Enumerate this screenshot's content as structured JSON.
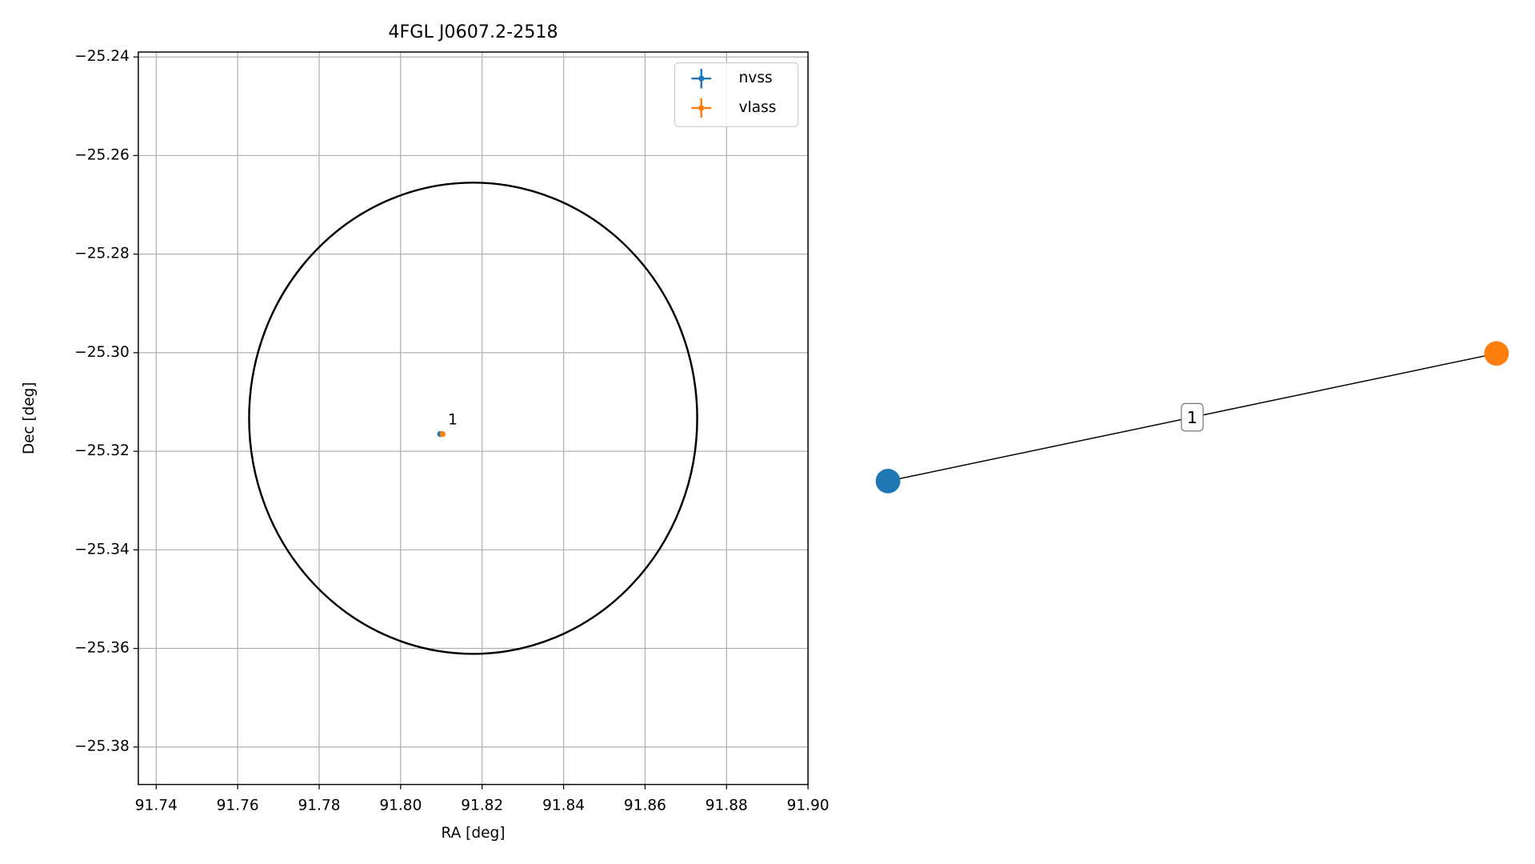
{
  "chart_data": [
    {
      "type": "scatter",
      "title": "4FGL J0607.2-2518",
      "xlabel": "RA [deg]",
      "ylabel": "Dec [deg]",
      "xlim": [
        91.7356,
        91.9
      ],
      "ylim": [
        -25.3876,
        -25.239
      ],
      "xticks": [
        91.74,
        91.76,
        91.78,
        {
          "value": 91.8,
          "label": "91.80"
        },
        91.82,
        91.84,
        91.86,
        91.88,
        {
          "value": 91.9,
          "label": "91.90"
        }
      ],
      "yticks": [
        {
          "value": -25.24,
          "label": "−25.24"
        },
        {
          "value": -25.26,
          "label": "−25.26"
        },
        {
          "value": -25.28,
          "label": "−25.28"
        },
        {
          "value": -25.3,
          "label": "−25.30"
        },
        {
          "value": -25.32,
          "label": "−25.32"
        },
        {
          "value": -25.34,
          "label": "−25.34"
        },
        {
          "value": -25.36,
          "label": "−25.36"
        },
        {
          "value": -25.38,
          "label": "−25.38"
        }
      ],
      "grid": true,
      "legend": "upper right",
      "series": [
        {
          "name": "nvss",
          "color": "#1f77b4",
          "x": [
            91.8097
          ],
          "values": [
            -25.3165
          ]
        },
        {
          "name": "vlass",
          "color": "#ff7f0e",
          "x": [
            91.8103
          ],
          "values": [
            -25.3165
          ]
        }
      ],
      "circle": {
        "x": 91.8178,
        "y": -25.3133,
        "rx": 0.055,
        "ry": 0.0478,
        "color": "#000000"
      },
      "annotations": [
        {
          "text": "1",
          "x": 91.8097,
          "y": -25.3165
        }
      ]
    },
    {
      "type": "network",
      "nodes": [
        {
          "color": "#1f77b4"
        },
        {
          "color": "#ff7f0e"
        }
      ],
      "edges": [
        {
          "source": 0,
          "target": 1,
          "label": "1"
        }
      ]
    }
  ]
}
